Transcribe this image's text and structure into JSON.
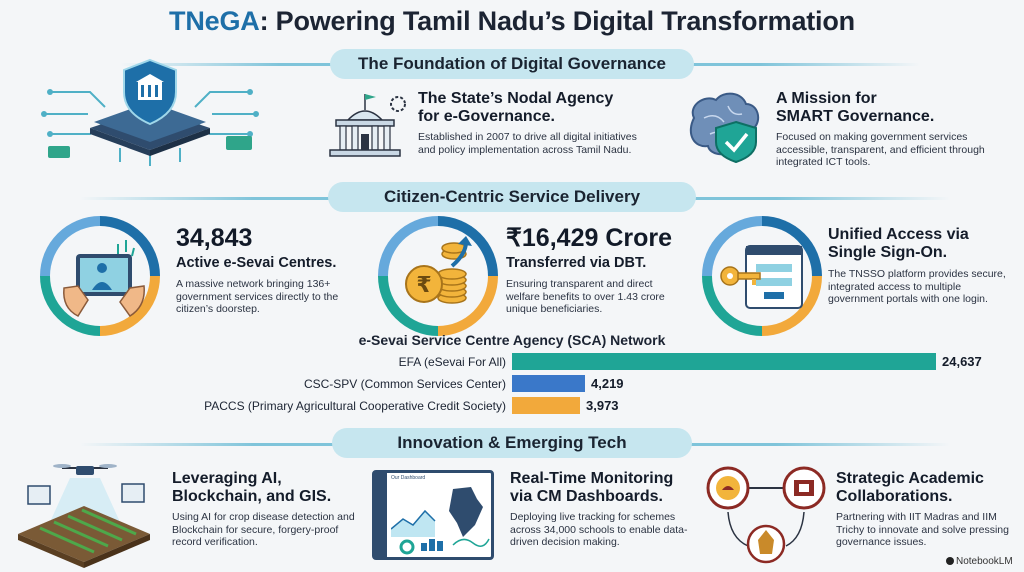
{
  "title": {
    "brand": "TNeGA",
    "rest": ": Powering Tamil Nadu’s Digital Transformation"
  },
  "sections": {
    "foundation": "The Foundation of Digital Governance",
    "citizen": "Citizen-Centric Service Delivery",
    "innovation": "Innovation & Emerging Tech"
  },
  "foundation": {
    "nodal": {
      "heading_line1": "The State’s Nodal Agency",
      "heading_line2": "for e-Governance.",
      "desc": "Established in 2007 to drive all digital initiatives and policy implementation across Tamil Nadu."
    },
    "mission": {
      "heading_line1": "A Mission for",
      "heading_line2": "SMART Governance.",
      "desc": "Focused on making government services accessible, transparent, and efficient through integrated ICT tools."
    }
  },
  "citizen": {
    "esevai": {
      "number": "34,843",
      "subtitle": "Active e-Sevai Centres.",
      "desc": "A massive network bringing 136+ government services directly to the citizen’s doorstep."
    },
    "dbt": {
      "number": "₹16,429 Crore",
      "subtitle": "Transferred via DBT.",
      "desc": "Ensuring transparent and direct welfare benefits to over 1.43 crore unique beneficiaries."
    },
    "sso": {
      "heading_line1": "Unified Access via",
      "heading_line2": "Single Sign-On.",
      "desc": "The TNSSO platform provides secure, integrated access to multiple government portals with one login."
    }
  },
  "chart_data": {
    "type": "bar",
    "title": "e-Sevai Service Centre Agency (SCA) Network",
    "categories": [
      "EFA (eSevai For All)",
      "CSC-SPV (Common Services Center)",
      "PACCS (Primary Agricultural Cooperative Credit Society)"
    ],
    "values": [
      24637,
      4219,
      3973
    ],
    "value_labels": [
      "24,637",
      "4,219",
      "3,973"
    ],
    "colors": [
      "#1fa596",
      "#3a78c9",
      "#f2a93b"
    ]
  },
  "innovation": {
    "ai": {
      "heading_line1": "Leveraging AI,",
      "heading_line2": "Blockchain, and GIS.",
      "desc": "Using AI for crop disease detection and Blockchain for secure, forgery-proof record verification."
    },
    "dashboard": {
      "heading_line1": "Real-Time Monitoring",
      "heading_line2": "via CM Dashboards.",
      "desc": "Deploying live tracking for schemes across 34,000 schools to enable data-driven decision making.",
      "screen_title": "Our Dashboard"
    },
    "academic": {
      "heading_line1": "Strategic Academic",
      "heading_line2": "Collaborations.",
      "desc": "Partnering with IIT Madras and IIM Trichy to innovate and solve pressing governance issues."
    }
  },
  "footer": {
    "brand": "NotebookLM"
  },
  "icons": [
    "shield-chip-icon",
    "government-building-icon",
    "brain-shield-icon",
    "tablet-hands-icon",
    "rupee-coins-icon",
    "key-login-icon",
    "drone-farm-icon",
    "dashboard-screen-icon",
    "academic-logos-icon"
  ]
}
